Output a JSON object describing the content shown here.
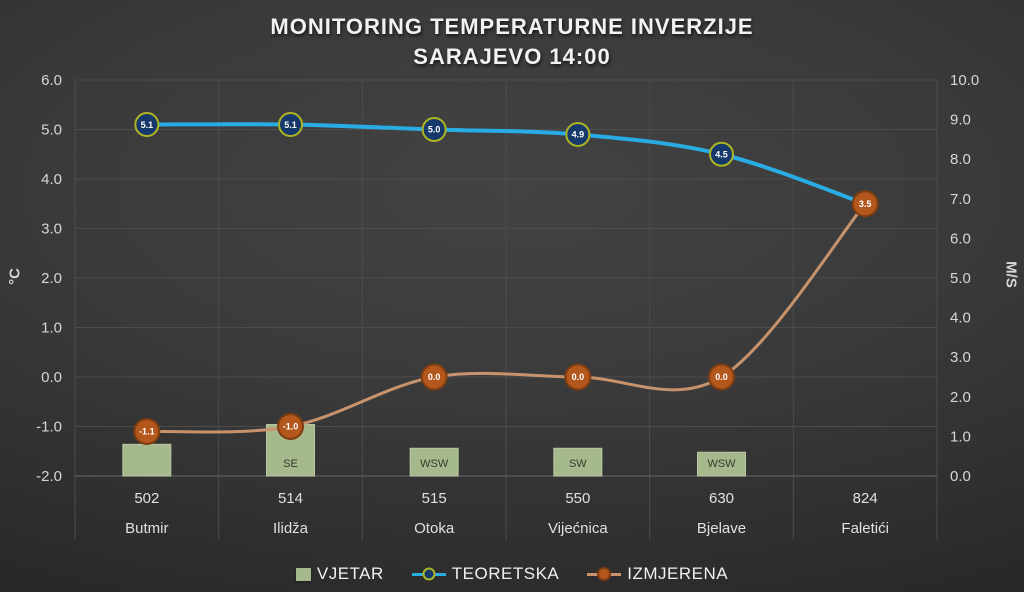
{
  "title": {
    "line1": "MONITORING TEMPERATURNE INVERZIJE",
    "line2": "SARAJEVO 14:00"
  },
  "chart_data": {
    "type": "combo-bar-line",
    "categories": [
      "Butmir",
      "Ilidža",
      "Otoka",
      "Vijećnica",
      "Bjelave",
      "Faletići"
    ],
    "elevations": [
      "502",
      "514",
      "515",
      "550",
      "630",
      "824"
    ],
    "left_axis": {
      "label": "°C",
      "min": -2,
      "max": 6,
      "ticks": [
        "6.0",
        "5.0",
        "4.0",
        "3.0",
        "2.0",
        "1.0",
        "0.0",
        "-1.0",
        "-2.0"
      ]
    },
    "right_axis": {
      "label": "M/S",
      "min": 0,
      "max": 10,
      "ticks": [
        "10.0",
        "9.0",
        "8.0",
        "7.0",
        "6.0",
        "5.0",
        "4.0",
        "3.0",
        "2.0",
        "1.0",
        "0.0"
      ]
    },
    "grid": "both",
    "legend_position": "bottom",
    "series": [
      {
        "name": "VJETAR",
        "type": "bar",
        "axis": "right",
        "values": [
          0.8,
          1.3,
          0.7,
          0.7,
          0.6,
          null
        ],
        "bar_labels": [
          "",
          "SE",
          "WSW",
          "SW",
          "WSW",
          ""
        ]
      },
      {
        "name": "TEORETSKA",
        "type": "line",
        "axis": "left",
        "values": [
          5.1,
          5.1,
          5.0,
          4.9,
          4.5,
          3.5
        ],
        "point_labels": [
          "5.1",
          "5.1",
          "5.0",
          "4.9",
          "4.5",
          ""
        ]
      },
      {
        "name": "IZMJERENA",
        "type": "line",
        "axis": "left",
        "values": [
          -1.1,
          -1.0,
          0.0,
          0.0,
          0.0,
          3.5
        ],
        "point_labels": [
          "-1.1",
          "-1.0",
          "0.0",
          "0.0",
          "0.0",
          "3.5"
        ]
      }
    ],
    "legend": [
      {
        "label": "VJETAR",
        "swatch": "bar"
      },
      {
        "label": "TEORETSKA",
        "swatch": "line"
      },
      {
        "label": "IZMJERENA",
        "swatch": "line"
      }
    ],
    "colors": {
      "background_center": "#434343",
      "background_edge": "#1f1f1f",
      "gridline": "#4c4c4c",
      "axis_line": "#5d5d5d",
      "axis_text": "#d6d6d6",
      "category_text": "#e0e0e0",
      "title_text": "#f2f2f2",
      "bar_fill": "#a6b98c",
      "bar_edge": "#b9c8a2",
      "bar_label_text": "#333b2d",
      "teoretska_line": "#29ace3",
      "teoretska_marker_fill": "#17386b",
      "teoretska_marker_ring": "#adb523",
      "izmjerena_line": "#c7936c",
      "izmjerena_marker_fill": "#b4571c",
      "izmjerena_marker_ring": "#7d3d10",
      "marker_label_text": "#ffffff"
    }
  }
}
